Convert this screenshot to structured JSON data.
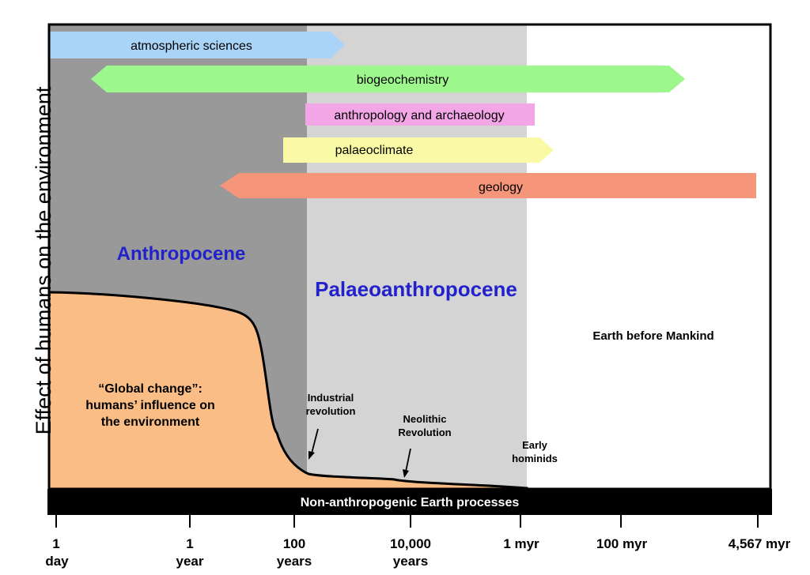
{
  "y_axis_label": "Effect of humans on the environment",
  "disciplines": [
    {
      "label": "atmospheric sciences",
      "color": "#a9d4f7"
    },
    {
      "label": "biogeochemistry",
      "color": "#9ef78d"
    },
    {
      "label": "anthropology and archaeology",
      "color": "#f3a6e6"
    },
    {
      "label": "palaeoclimate",
      "color": "#fafaa6"
    },
    {
      "label": "geology",
      "color": "#f5967a"
    }
  ],
  "regions": {
    "anthropocene": {
      "label": "Anthropocene",
      "color": "#999999"
    },
    "palaeoanthropocene": {
      "label": "Palaeoanthropocene",
      "color": "#d4d4d4"
    },
    "before_mankind": {
      "label": "Earth before Mankind",
      "color": "#ffffff"
    }
  },
  "region_label_color": "#2222cc",
  "impact_curve": {
    "fill": "#f9bd85",
    "label_lines": [
      "“Global change”:",
      "humans’ influence on",
      "the environment"
    ]
  },
  "events": [
    {
      "lines": [
        "Industrial",
        "revolution"
      ]
    },
    {
      "lines": [
        "Neolithic",
        "Revolution"
      ]
    },
    {
      "lines": [
        "Early",
        "hominids"
      ]
    }
  ],
  "base_bar": {
    "label": "Non-anthropogenic Earth processes",
    "color": "#000000"
  },
  "x_ticks": [
    {
      "lines": [
        "1",
        "day"
      ]
    },
    {
      "lines": [
        "1",
        "year"
      ]
    },
    {
      "lines": [
        "100",
        "years"
      ]
    },
    {
      "lines": [
        "10,000",
        "years"
      ]
    },
    {
      "lines": [
        "1 myr"
      ]
    },
    {
      "lines": [
        "100 myr"
      ]
    },
    {
      "lines": [
        "4,567 myr"
      ]
    }
  ]
}
